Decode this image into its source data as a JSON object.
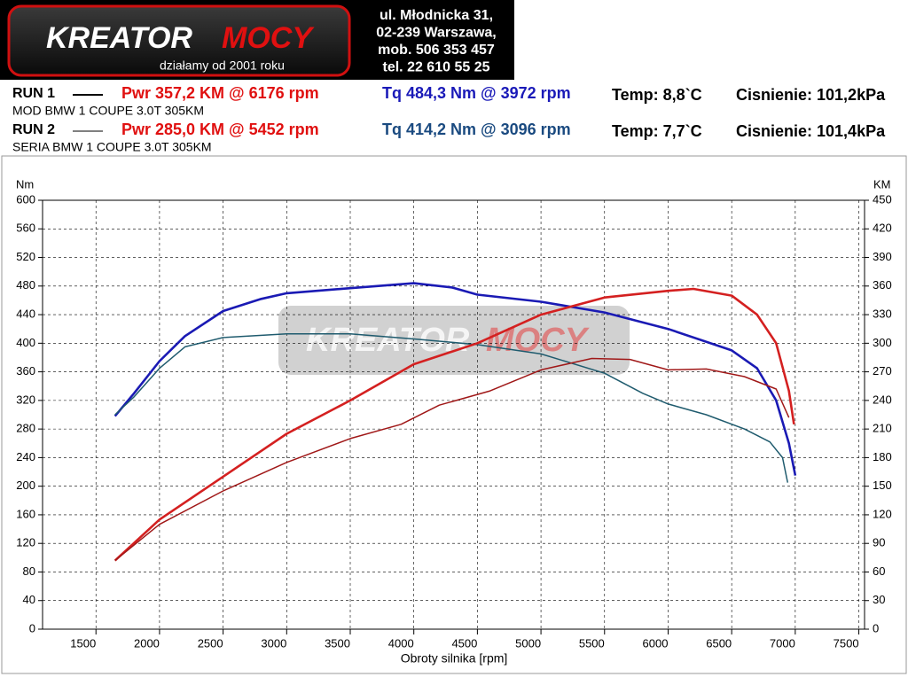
{
  "header": {
    "logo": {
      "brand_left": "KREATOR",
      "brand_right": "MOCY",
      "tagline": "działamy od 2001 roku"
    },
    "address": [
      "ul. Młodnicka 31,",
      "02-239  Warszawa,",
      "mob.  506 353 457",
      "tel.  22 610 55 25"
    ]
  },
  "runs": [
    {
      "name": "RUN 1",
      "power": "Pwr  357,2 KM @ 6176 rpm",
      "torque": "Tq 484,3 Nm @ 3972 rpm",
      "temp": "Temp: 8,8`C",
      "pressure": "Cisnienie: 101,2kPa",
      "description": "MOD BMW 1 COUPE 3.0T 305KM"
    },
    {
      "name": "RUN 2",
      "power": "Pwr  285,0 KM @ 5452 rpm",
      "torque": "Tq 414,2 Nm @ 3096 rpm",
      "temp": "Temp: 7,7`C",
      "pressure": "Cisnienie: 101,4kPa",
      "description": "SERIA BMW 1 COUPE 3.0T 305KM"
    }
  ],
  "chart_data": {
    "type": "line",
    "x_label": "Obroty silnika [rpm]",
    "y_label": "Nm",
    "y2_label": "KM",
    "xlim": [
      1080,
      7545
    ],
    "xticks": [
      1500,
      2000,
      2500,
      3000,
      3500,
      4000,
      4500,
      5000,
      5500,
      6000,
      6500,
      7000,
      7500
    ],
    "ylim": [
      0,
      600
    ],
    "yticks": [
      0,
      40,
      80,
      120,
      160,
      200,
      240,
      280,
      320,
      360,
      400,
      440,
      480,
      520,
      560,
      600
    ],
    "y2lim": [
      0,
      450
    ],
    "y2ticks": [
      0,
      30,
      60,
      90,
      120,
      150,
      180,
      210,
      240,
      270,
      300,
      330,
      360,
      390,
      420,
      450
    ],
    "grid": true,
    "series": [
      {
        "color": "#1a1ab4",
        "x": [
          1650,
          1800,
          2000,
          2200,
          2500,
          2800,
          3000,
          3500,
          4000,
          4300,
          4500,
          5000,
          5500,
          6000,
          6500,
          6700,
          6850,
          6950,
          7000
        ],
        "values": [
          298,
          330,
          375,
          410,
          445,
          462,
          470,
          477,
          484,
          478,
          468,
          458,
          443,
          420,
          390,
          365,
          320,
          260,
          215
        ]
      },
      {
        "color": "#1f5b6e",
        "x": [
          1650,
          1800,
          2000,
          2200,
          2500,
          3000,
          3500,
          4000,
          4500,
          5000,
          5500,
          5800,
          6000,
          6300,
          6600,
          6800,
          6900,
          6940
        ],
        "values": [
          300,
          325,
          365,
          395,
          408,
          413,
          413,
          406,
          398,
          385,
          358,
          330,
          315,
          300,
          280,
          262,
          240,
          205
        ]
      },
      {
        "color": "#d42020",
        "axis": "y2",
        "x": [
          1650,
          2000,
          2500,
          3000,
          3500,
          4000,
          4500,
          5000,
          5500,
          6000,
          6200,
          6500,
          6700,
          6850,
          6950,
          6990
        ],
        "values": [
          72,
          115,
          160,
          205,
          240,
          278,
          300,
          330,
          348,
          355,
          357,
          350,
          330,
          300,
          250,
          215
        ]
      },
      {
        "color": "#a01818",
        "axis": "y2",
        "x": [
          1650,
          2000,
          2500,
          3000,
          3500,
          3900,
          4200,
          4600,
          5000,
          5400,
          5700,
          6000,
          6300,
          6600,
          6850,
          6950
        ],
        "values": [
          72,
          110,
          145,
          175,
          200,
          215,
          235,
          250,
          272,
          284,
          283,
          272,
          273,
          265,
          252,
          222
        ]
      }
    ]
  }
}
